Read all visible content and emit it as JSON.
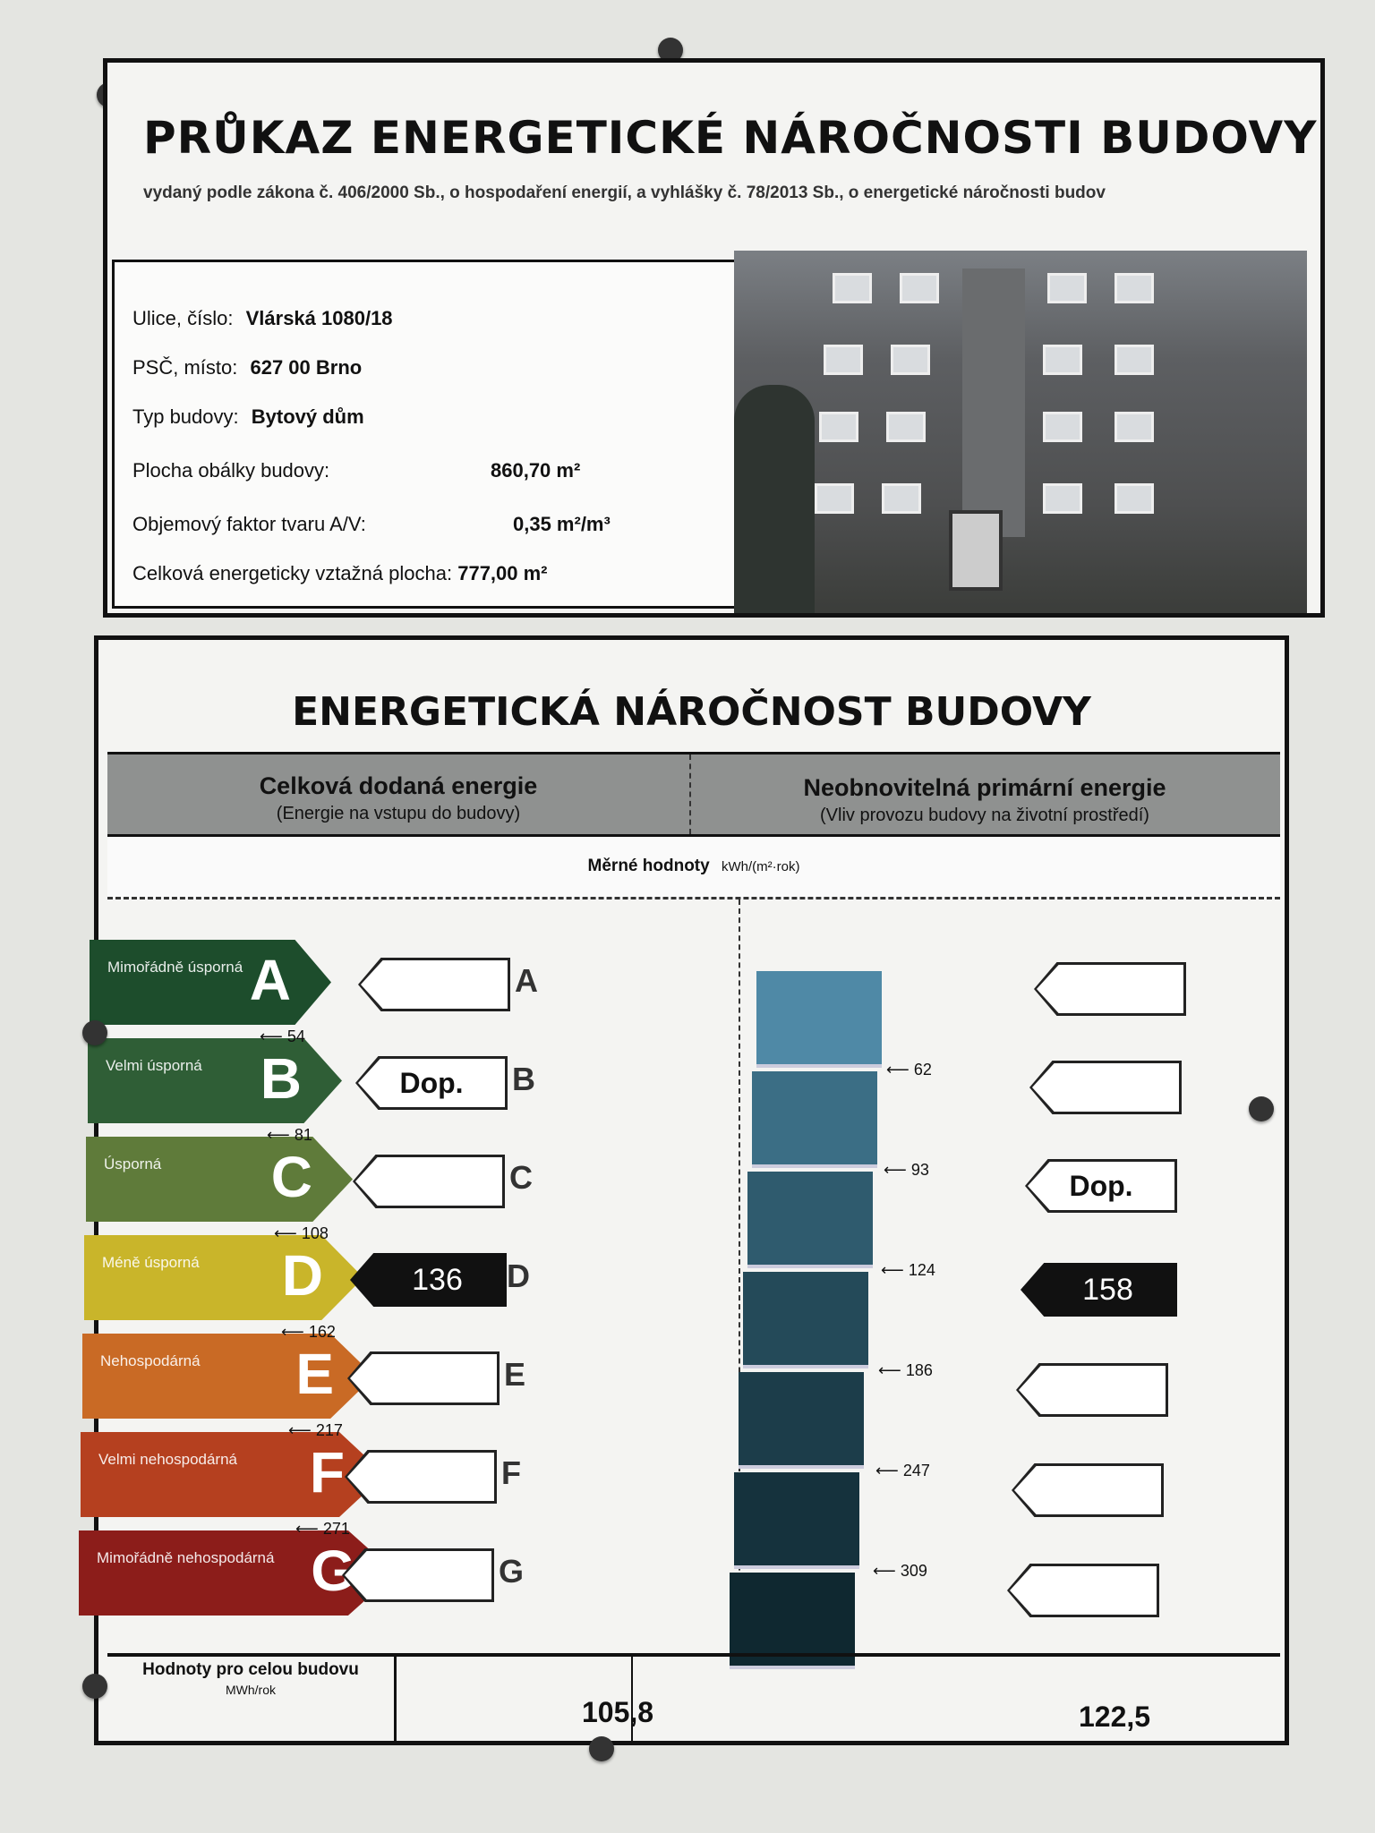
{
  "header": {
    "title": "PRŮKAZ ENERGETICKÉ NÁROČNOSTI BUDOVY",
    "subtitle": "vydaný podle zákona č. 406/2000 Sb., o hospodaření energií, a vyhlášky č. 78/2013 Sb., o energetické náročnosti budov"
  },
  "info": [
    {
      "label": "Ulice, číslo:",
      "value": "Vlárská 1080/18"
    },
    {
      "label": "PSČ, místo:",
      "value": "627 00 Brno"
    },
    {
      "label": "Typ budovy:",
      "value": "Bytový dům"
    },
    {
      "label": "Plocha obálky budovy:",
      "value": "860,70 m²"
    },
    {
      "label": "Objemový faktor tvaru A/V:",
      "value": "0,35 m²/m³"
    },
    {
      "label": "Celková energeticky vztažná plocha:",
      "value": "777,00 m²"
    }
  ],
  "rating": {
    "title": "ENERGETICKÁ NÁROČNOST BUDOVY",
    "left_title": "Celková dodaná energie",
    "left_sub": "(Energie na vstupu do budovy)",
    "right_title": "Neobnovitelná primární energie",
    "right_sub": "(Vliv provozu budovy na životní prostředí)",
    "specific_label": "Měrné hodnoty",
    "specific_unit": "kWh/(m²·rok)",
    "classes": [
      {
        "letter": "A",
        "label": "Mimořádně úsporná",
        "color": "#1d4d2c"
      },
      {
        "letter": "B",
        "label": "Velmi úsporná",
        "color": "#2f5e36"
      },
      {
        "letter": "C",
        "label": "Úsporná",
        "color": "#5f7b3a"
      },
      {
        "letter": "D",
        "label": "Méně úsporná",
        "color": "#c9b52a"
      },
      {
        "letter": "E",
        "label": "Nehospodárná",
        "color": "#c96a25"
      },
      {
        "letter": "F",
        "label": "Velmi nehospodárná",
        "color": "#b5401f"
      },
      {
        "letter": "G",
        "label": "Mimořádně nehospodárná",
        "color": "#8c1d1a"
      }
    ],
    "left_thresholds": [
      "54",
      "81",
      "108",
      "162",
      "217",
      "271"
    ],
    "right_thresholds": [
      "62",
      "93",
      "124",
      "186",
      "247",
      "309"
    ],
    "left_reference": {
      "class": "B",
      "label": "Dop."
    },
    "left_value": {
      "class": "D",
      "value": "136"
    },
    "right_reference": {
      "class": "C",
      "label": "Dop."
    },
    "right_value": {
      "class": "D",
      "value": "158"
    },
    "whole_label": "Hodnoty pro celou budovu",
    "whole_unit": "MWh/rok",
    "whole_left": "105,8",
    "whole_right": "122,5"
  }
}
